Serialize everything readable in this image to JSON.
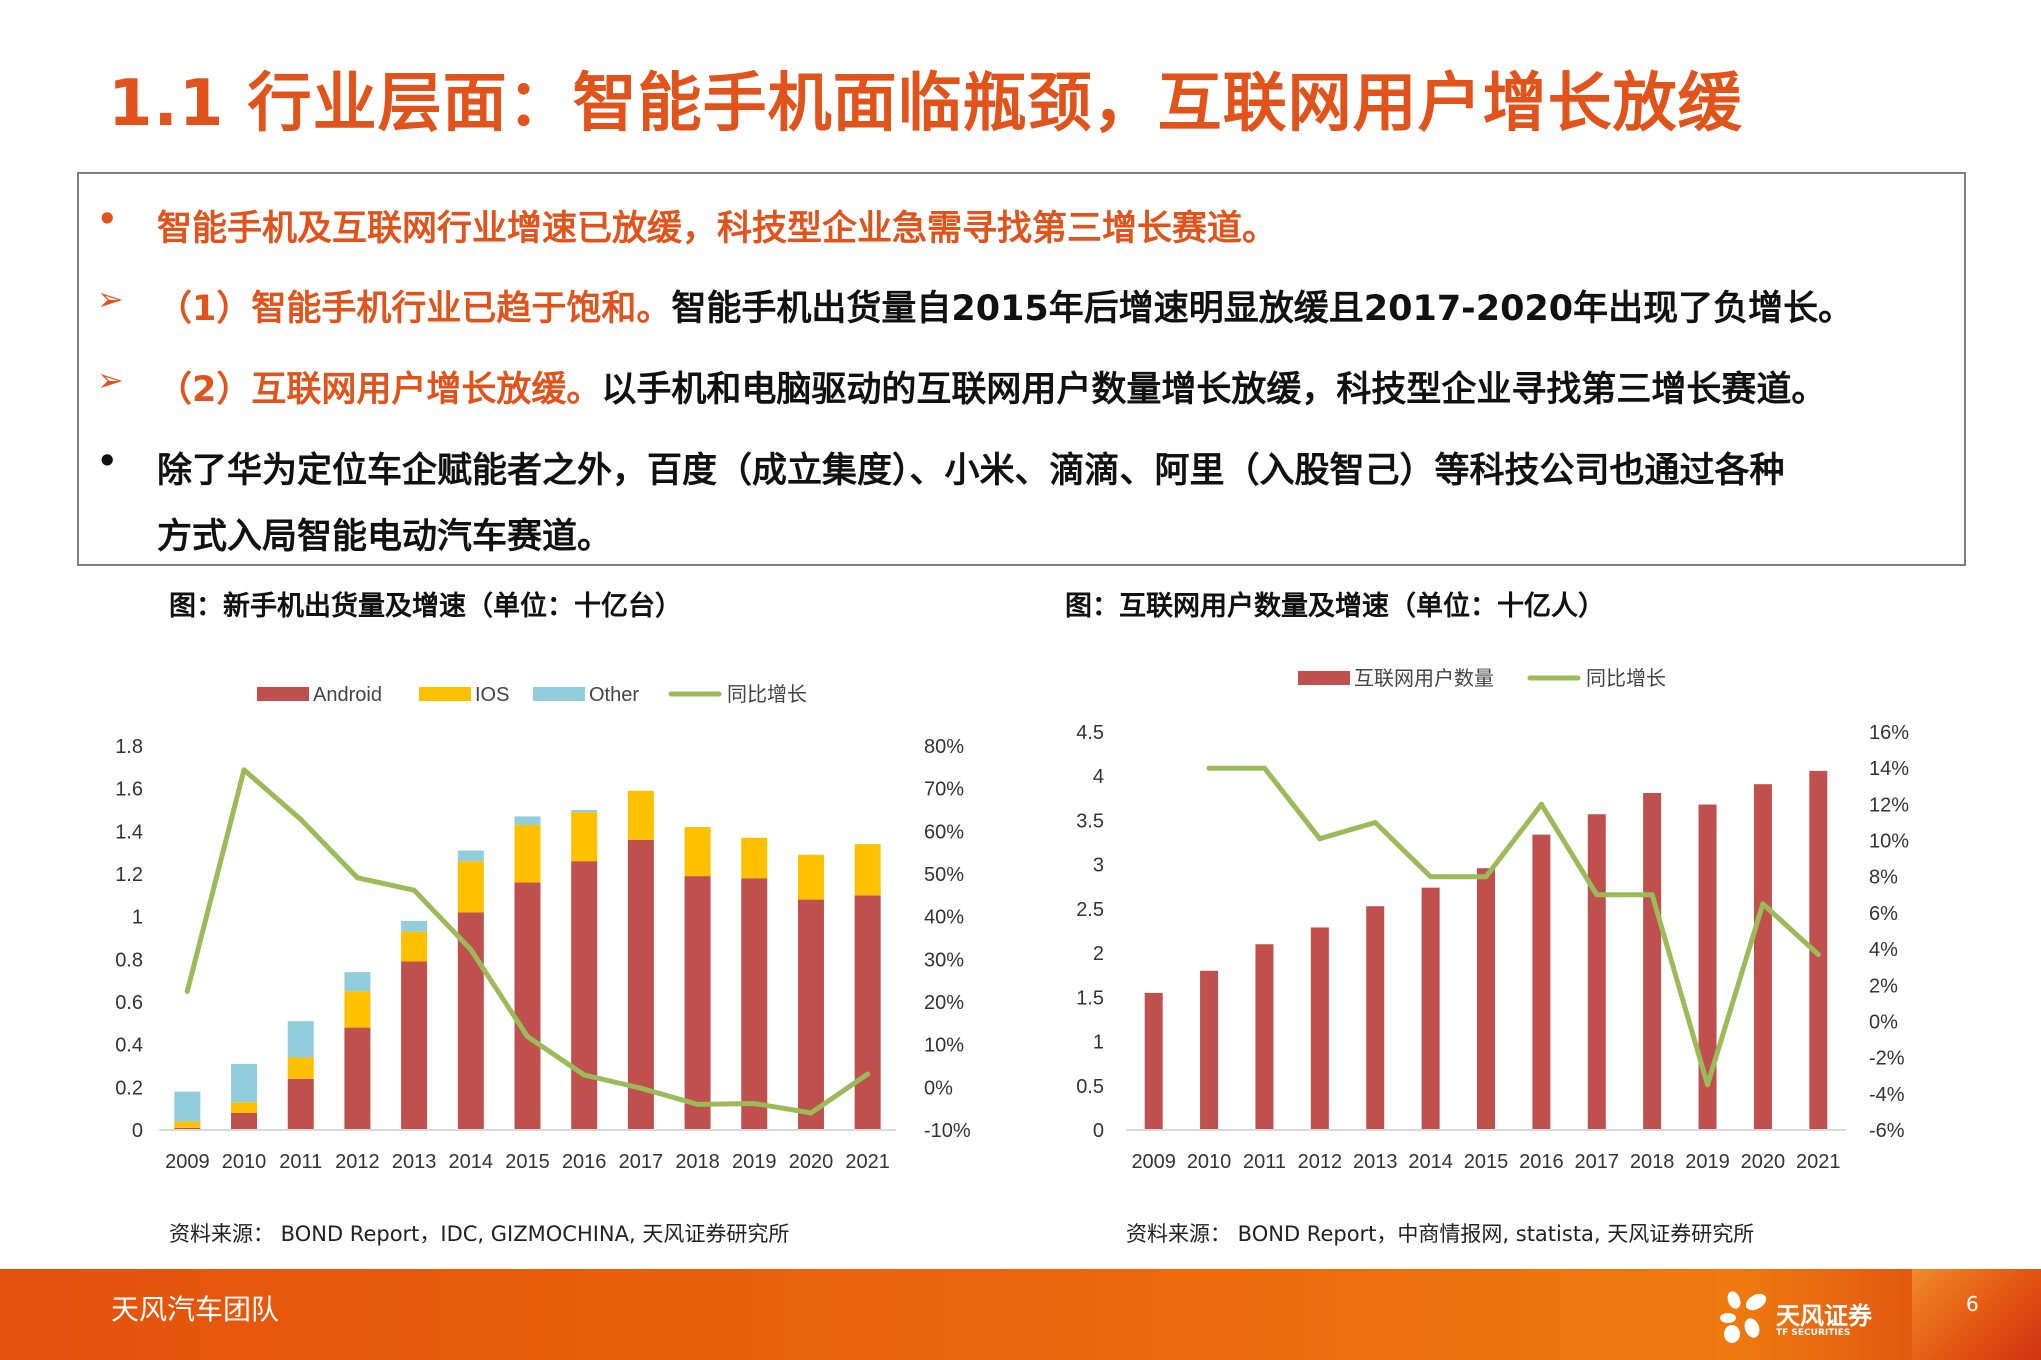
{
  "title": "1.1 行业层面：智能手机面临瓶颈，互联网用户增长放缓",
  "bullets": [
    {
      "marker": "•",
      "orange": "智能手机及互联网行业增速已放缓，科技型企业急需寻找第三增长赛道。",
      "black": ""
    },
    {
      "marker": "➢",
      "orange": "（1）智能手机行业已趋于饱和。",
      "black": "智能手机出货量自2015年后增速明显放缓且2017-2020年出现了负增长。"
    },
    {
      "marker": "➢",
      "orange": "（2）互联网用户增长放缓。",
      "black": "以手机和电脑驱动的互联网用户数量增长放缓，科技型企业寻找第三增长赛道。"
    },
    {
      "marker": "•",
      "orange": "",
      "black": "除了华为定位车企赋能者之外，百度（成立集度）、小米、滴滴、阿里（入股智己）等科技公司也通过各种",
      "black2": "方式入局智能电动汽车赛道。"
    }
  ],
  "colors": {
    "title": "#e2531b",
    "android": "#c0504d",
    "ios": "#ffc000",
    "other": "#92cddc",
    "growth": "#9bbb59",
    "bar": "#c0504d",
    "footer": "#e8590c"
  },
  "chart_data": [
    {
      "type": "bar",
      "caption": "图：新手机出货量及增速（单位：十亿台）",
      "source": "资料来源： BOND Report，IDC, GIZMOCHINA, 天风证券研究所",
      "categories": [
        "2009",
        "2010",
        "2011",
        "2012",
        "2013",
        "2014",
        "2015",
        "2016",
        "2017",
        "2018",
        "2019",
        "2020",
        "2021"
      ],
      "stacked": true,
      "series": [
        {
          "name": "Android",
          "values": [
            0.01,
            0.08,
            0.24,
            0.48,
            0.79,
            1.02,
            1.16,
            1.26,
            1.36,
            1.19,
            1.18,
            1.08,
            1.1
          ]
        },
        {
          "name": "IOS",
          "values": [
            0.03,
            0.05,
            0.1,
            0.17,
            0.14,
            0.24,
            0.27,
            0.23,
            0.23,
            0.23,
            0.19,
            0.21,
            0.24
          ]
        },
        {
          "name": "Other",
          "values": [
            0.14,
            0.18,
            0.17,
            0.09,
            0.05,
            0.05,
            0.04,
            0.01,
            0,
            0,
            0,
            0,
            0
          ]
        },
        {
          "name": "同比增长",
          "type": "line",
          "axis": "right",
          "values": [
            22.5,
            74.4,
            62.8,
            49.1,
            46.2,
            32.3,
            11.9,
            2.9,
            -0.2,
            -4.0,
            -3.8,
            -6.0,
            3.1
          ]
        }
      ],
      "ylim": [
        0,
        1.8
      ],
      "yticks": [
        "0",
        "0.2",
        "0.4",
        "0.6",
        "0.8",
        "1",
        "1.2",
        "1.4",
        "1.6",
        "1.8"
      ],
      "y2lim": [
        -10,
        80
      ],
      "y2ticks": [
        "-10%",
        "0%",
        "10%",
        "20%",
        "30%",
        "40%",
        "50%",
        "60%",
        "70%",
        "80%"
      ],
      "legend": "top"
    },
    {
      "type": "bar",
      "caption": "图：互联网用户数量及增速（单位：十亿人）",
      "source": "资料来源： BOND Report，中商情报网, statista, 天风证券研究所",
      "categories": [
        "2009",
        "2010",
        "2011",
        "2012",
        "2013",
        "2014",
        "2015",
        "2016",
        "2017",
        "2018",
        "2019",
        "2020",
        "2021"
      ],
      "series": [
        {
          "name": "互联网用户数量",
          "values": [
            1.55,
            1.8,
            2.1,
            2.29,
            2.53,
            2.74,
            2.96,
            3.34,
            3.57,
            3.81,
            3.68,
            3.91,
            4.06
          ]
        },
        {
          "name": "同比增长",
          "type": "line",
          "axis": "right",
          "values": [
            null,
            14.0,
            14.0,
            10.1,
            11.0,
            8.0,
            8.0,
            12.0,
            7.0,
            7.0,
            -3.5,
            6.5,
            3.7
          ]
        }
      ],
      "ylim": [
        0,
        4.5
      ],
      "yticks": [
        "0",
        "0.5",
        "1",
        "1.5",
        "2",
        "2.5",
        "3",
        "3.5",
        "4",
        "4.5"
      ],
      "y2lim": [
        -6,
        16
      ],
      "y2ticks": [
        "-6%",
        "-4%",
        "-2%",
        "0%",
        "2%",
        "4%",
        "6%",
        "8%",
        "10%",
        "12%",
        "14%",
        "16%"
      ],
      "legend": "top"
    }
  ],
  "footer": {
    "team": "天风汽车团队",
    "logo_cn": "天风证券",
    "logo_en": "TF SECURITIES",
    "page": "6"
  }
}
